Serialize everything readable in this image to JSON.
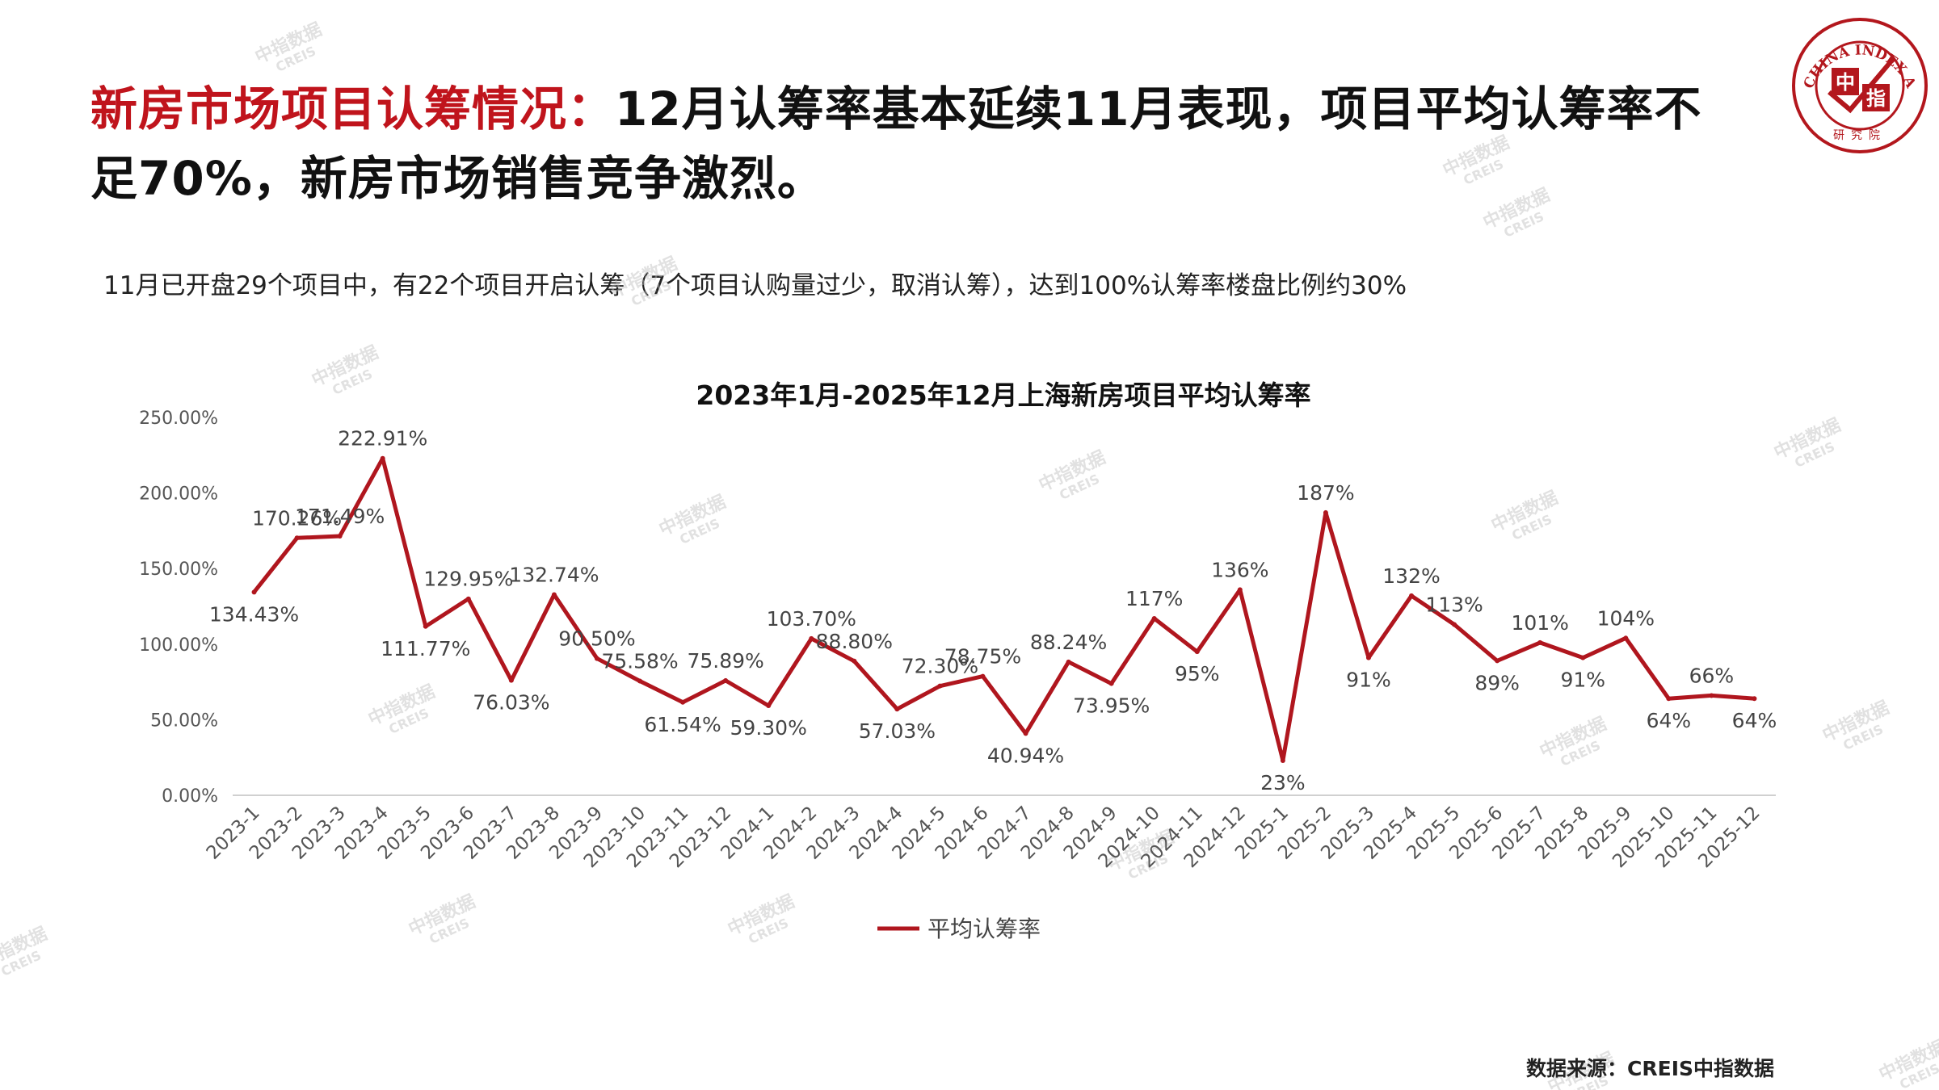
{
  "header": {
    "title_highlight": "新房市场项目认筹情况：",
    "title_rest": "12月认筹率基本延续11月表现，项目平均认筹率不足70%，新房市场销售竞争激烈。",
    "subtitle": "11月已开盘29个项目中，有22个项目开启认筹（7个项目认购量过少，取消认筹），达到100%认筹率楼盘比例约30%"
  },
  "logo": {
    "ring_text": "CHINA INDEX ACADEMY",
    "center_left": "中",
    "center_right": "指",
    "bottom_text": "研究院"
  },
  "watermark": {
    "cn": "中指数据",
    "en": "CREIS"
  },
  "source": "数据来源：CREIS中指数据",
  "colors": {
    "accent": "#c0141c",
    "line": "#b0161e",
    "axis": "#d0d0d0"
  },
  "chart_data": {
    "type": "line",
    "title": "2023年1月-2025年12月上海新房项目平均认筹率",
    "ylim": [
      0,
      250
    ],
    "yticks": [
      "0.00%",
      "50.00%",
      "100.00%",
      "150.00%",
      "200.00%",
      "250.00%"
    ],
    "categories": [
      "2023-1",
      "2023-2",
      "2023-3",
      "2023-4",
      "2023-5",
      "2023-6",
      "2023-7",
      "2023-8",
      "2023-9",
      "2023-10",
      "2023-11",
      "2023-12",
      "2024-1",
      "2024-2",
      "2024-3",
      "2024-4",
      "2024-5",
      "2024-6",
      "2024-7",
      "2024-8",
      "2024-9",
      "2024-10",
      "2024-11",
      "2024-12",
      "2025-1",
      "2025-2",
      "2025-3",
      "2025-4",
      "2025-5",
      "2025-6",
      "2025-7",
      "2025-8",
      "2025-9",
      "2025-10",
      "2025-11",
      "2025-12"
    ],
    "series": [
      {
        "name": "平均认筹率",
        "values": [
          134.43,
          170.26,
          171.49,
          222.91,
          111.77,
          129.95,
          76.03,
          132.74,
          90.5,
          75.58,
          61.54,
          75.89,
          59.3,
          103.7,
          88.8,
          57.03,
          72.3,
          78.75,
          40.94,
          88.24,
          73.95,
          117,
          95,
          136,
          23,
          187,
          91,
          132,
          113,
          89,
          101,
          91,
          104,
          64,
          66,
          64
        ],
        "labels": [
          "134.43%",
          "170.26%",
          "171.49%",
          "222.91%",
          "111.77%",
          "129.95%",
          "76.03%",
          "132.74%",
          "90.50%",
          "75.58%",
          "61.54%",
          "75.89%",
          "59.30%",
          "103.70%",
          "88.80%",
          "57.03%",
          "72.30%",
          "78.75%",
          "40.94%",
          "88.24%",
          "73.95%",
          "117%",
          "95%",
          "136%",
          "23%",
          "187%",
          "91%",
          "132%",
          "113%",
          "89%",
          "101%",
          "91%",
          "104%",
          "64%",
          "66%",
          "64%"
        ]
      }
    ],
    "legend": "bottom",
    "grid": false
  }
}
